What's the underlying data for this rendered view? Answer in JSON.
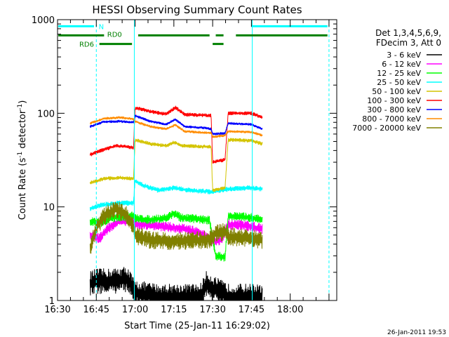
{
  "chart_data": {
    "type": "line",
    "title": "HESSI Observing Summary Count Rates",
    "xlabel": "Start Time (25-Jan-11 16:29:02)",
    "ylabel_main": "Count Rate (s",
    "ylabel_sup1": "-1",
    "ylabel_mid": " detector",
    "ylabel_sup2": "-1",
    "ylabel_end": ")",
    "xlim": [
      16.5,
      18.3
    ],
    "ylim": [
      1,
      1000
    ],
    "yscale": "log",
    "x_ticks": [
      {
        "label": "16:30",
        "value": 16.5
      },
      {
        "label": "16:45",
        "value": 16.75
      },
      {
        "label": "17:00",
        "value": 17.0
      },
      {
        "label": "17:15",
        "value": 17.25
      },
      {
        "label": "17:30",
        "value": 17.5
      },
      {
        "label": "17:45",
        "value": 17.75
      },
      {
        "label": "18:00",
        "value": 18.0
      }
    ],
    "y_ticks": [
      {
        "label": "1",
        "value": 1
      },
      {
        "label": "10",
        "value": 10
      },
      {
        "label": "100",
        "value": 100
      },
      {
        "label": "1000",
        "value": 1000
      }
    ],
    "legend_header": [
      "Det 1,3,4,5,6,9,",
      "FDecim 3, Att 0"
    ],
    "legend_position": "right",
    "timestamp": "26-Jan-2011 19:53",
    "flags": [
      {
        "label": "N",
        "y": 850,
        "color": "#00ffff",
        "segments": [
          [
            16.505,
            16.735
          ],
          [
            17.75,
            18.24
          ]
        ]
      },
      {
        "label": "RD0",
        "y": 680,
        "color": "#008000",
        "segments": [
          [
            16.505,
            16.8
          ],
          [
            17.02,
            17.48
          ],
          [
            17.52,
            17.57
          ],
          [
            17.65,
            18.24
          ]
        ]
      },
      {
        "label": "RD6",
        "y": 550,
        "color": "#008000",
        "segments": [
          [
            16.77,
            16.98
          ],
          [
            17.5,
            17.57
          ]
        ]
      }
    ],
    "vlines": [
      {
        "x": 16.5,
        "style": "solid",
        "color": "#00ffff"
      },
      {
        "x": 16.75,
        "style": "dashed",
        "color": "#00ffff"
      },
      {
        "x": 16.995,
        "style": "solid",
        "color": "#00ffff"
      },
      {
        "x": 17.755,
        "style": "solid",
        "color": "#00ffff"
      },
      {
        "x": 18.25,
        "style": "dashed",
        "color": "#00ffff"
      }
    ],
    "gaps": [
      [
        16.5,
        16.69
      ],
      [
        18.05,
        18.3
      ]
    ],
    "series": [
      {
        "name": "3 - 6 keV",
        "color": "#000000",
        "noise": 0.1,
        "knots": [
          [
            16.71,
            1.5
          ],
          [
            16.75,
            1.6
          ],
          [
            16.85,
            1.6
          ],
          [
            16.95,
            1.7
          ],
          [
            17.0,
            1.2
          ],
          [
            17.15,
            1.1
          ],
          [
            17.42,
            1.1
          ],
          [
            17.46,
            1.5
          ],
          [
            17.52,
            1.3
          ],
          [
            17.6,
            1.1
          ],
          [
            17.78,
            1.1
          ],
          [
            17.82,
            1.05
          ]
        ]
      },
      {
        "name": "6 - 12 keV",
        "color": "#ff00ff",
        "noise": 0.04,
        "knots": [
          [
            16.71,
            5
          ],
          [
            16.77,
            4.6
          ],
          [
            16.83,
            6
          ],
          [
            16.9,
            7
          ],
          [
            16.99,
            7.2
          ],
          [
            17.0,
            6.5
          ],
          [
            17.1,
            6.4
          ],
          [
            17.25,
            6.0
          ],
          [
            17.35,
            5.7
          ],
          [
            17.42,
            5.2
          ],
          [
            17.48,
            4.6
          ],
          [
            17.52,
            4.3
          ],
          [
            17.56,
            4.5
          ],
          [
            17.6,
            6.5
          ],
          [
            17.75,
            6.2
          ],
          [
            17.82,
            5.8
          ]
        ]
      },
      {
        "name": "12 - 25 keV",
        "color": "#00ff00",
        "noise": 0.035,
        "knots": [
          [
            16.71,
            7.0
          ],
          [
            16.78,
            6.8
          ],
          [
            16.85,
            7.6
          ],
          [
            16.95,
            8.0
          ],
          [
            16.99,
            8.0
          ],
          [
            17.0,
            7.5
          ],
          [
            17.1,
            7.3
          ],
          [
            17.2,
            7.6
          ],
          [
            17.25,
            8.5
          ],
          [
            17.3,
            7.6
          ],
          [
            17.42,
            7.4
          ],
          [
            17.48,
            7.2
          ],
          [
            17.52,
            3.0
          ],
          [
            17.58,
            2.9
          ],
          [
            17.6,
            8.0
          ],
          [
            17.75,
            7.7
          ],
          [
            17.82,
            7.2
          ]
        ]
      },
      {
        "name": "25 - 50 keV",
        "color": "#00ffff",
        "noise": 0.02,
        "knots": [
          [
            16.71,
            9.5
          ],
          [
            16.78,
            10.5
          ],
          [
            16.9,
            11
          ],
          [
            16.99,
            11
          ],
          [
            17.0,
            19
          ],
          [
            17.05,
            17
          ],
          [
            17.15,
            15
          ],
          [
            17.25,
            16
          ],
          [
            17.35,
            15
          ],
          [
            17.48,
            14.5
          ],
          [
            17.5,
            14.5
          ],
          [
            17.6,
            15.5
          ],
          [
            17.75,
            16
          ],
          [
            17.82,
            15.5
          ]
        ]
      },
      {
        "name": "50 - 100 keV",
        "color": "#d4c400",
        "noise": 0.015,
        "knots": [
          [
            16.71,
            18
          ],
          [
            16.8,
            20
          ],
          [
            16.9,
            20.5
          ],
          [
            16.99,
            20
          ],
          [
            17.0,
            52
          ],
          [
            17.1,
            47
          ],
          [
            17.2,
            45
          ],
          [
            17.25,
            49
          ],
          [
            17.3,
            45
          ],
          [
            17.45,
            44
          ],
          [
            17.49,
            44
          ],
          [
            17.5,
            15
          ],
          [
            17.58,
            16
          ],
          [
            17.6,
            52
          ],
          [
            17.75,
            51
          ],
          [
            17.82,
            47
          ]
        ]
      },
      {
        "name": "100 - 300 keV",
        "color": "#ff0000",
        "noise": 0.015,
        "knots": [
          [
            16.71,
            36
          ],
          [
            16.78,
            40
          ],
          [
            16.88,
            45
          ],
          [
            16.99,
            43
          ],
          [
            17.0,
            115
          ],
          [
            17.1,
            104
          ],
          [
            17.2,
            98
          ],
          [
            17.26,
            115
          ],
          [
            17.32,
            97
          ],
          [
            17.45,
            95
          ],
          [
            17.49,
            95
          ],
          [
            17.5,
            30
          ],
          [
            17.58,
            32
          ],
          [
            17.6,
            100
          ],
          [
            17.75,
            100
          ],
          [
            17.82,
            90
          ]
        ]
      },
      {
        "name": "300 - 800 keV",
        "color": "#0000ff",
        "noise": 0.01,
        "knots": [
          [
            16.71,
            72
          ],
          [
            16.8,
            81
          ],
          [
            16.9,
            82
          ],
          [
            16.99,
            80
          ],
          [
            17.0,
            94
          ],
          [
            17.1,
            82
          ],
          [
            17.2,
            76
          ],
          [
            17.26,
            86
          ],
          [
            17.32,
            72
          ],
          [
            17.45,
            70
          ],
          [
            17.49,
            68
          ],
          [
            17.5,
            60
          ],
          [
            17.58,
            61
          ],
          [
            17.6,
            78
          ],
          [
            17.75,
            76
          ],
          [
            17.82,
            68
          ]
        ]
      },
      {
        "name": "800 - 7000 keV",
        "color": "#ff8c00",
        "noise": 0.01,
        "knots": [
          [
            16.71,
            78
          ],
          [
            16.8,
            88
          ],
          [
            16.9,
            90
          ],
          [
            16.99,
            87
          ],
          [
            17.0,
            82
          ],
          [
            17.1,
            72
          ],
          [
            17.2,
            68
          ],
          [
            17.26,
            75
          ],
          [
            17.32,
            64
          ],
          [
            17.45,
            62
          ],
          [
            17.49,
            62
          ],
          [
            17.5,
            56
          ],
          [
            17.58,
            58
          ],
          [
            17.6,
            64
          ],
          [
            17.75,
            63
          ],
          [
            17.82,
            58
          ]
        ]
      },
      {
        "name": "7000 - 20000 keV",
        "color": "#808000",
        "noise": 0.07,
        "knots": [
          [
            16.71,
            3.5
          ],
          [
            16.75,
            6
          ],
          [
            16.8,
            8
          ],
          [
            16.88,
            9.5
          ],
          [
            16.95,
            8
          ],
          [
            16.99,
            6
          ],
          [
            17.0,
            5
          ],
          [
            17.1,
            4.4
          ],
          [
            17.25,
            4.3
          ],
          [
            17.4,
            4.4
          ],
          [
            17.48,
            4.5
          ],
          [
            17.52,
            5.2
          ],
          [
            17.58,
            5.4
          ],
          [
            17.6,
            4.8
          ],
          [
            17.75,
            4.6
          ],
          [
            17.82,
            4.4
          ]
        ]
      }
    ]
  }
}
